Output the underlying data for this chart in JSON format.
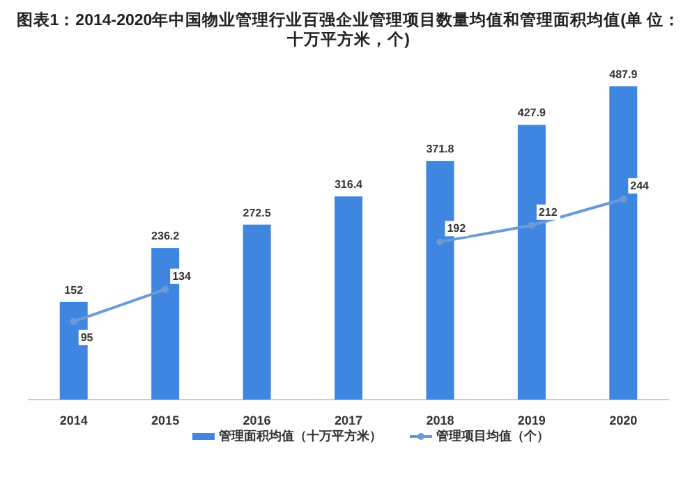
{
  "chart_data": {
    "type": "bar",
    "title": "图表1：2014-2020年中国物业管理行业百强企业管理项目数量均值和管理面积均值(单 位：十万平方米，个)",
    "categories": [
      "2014",
      "2015",
      "2016",
      "2017",
      "2018",
      "2019",
      "2020"
    ],
    "series": [
      {
        "name": "管理面积均值（十万平方米）",
        "color": "#3f86e0",
        "values": [
          152,
          236.2,
          272.5,
          316.4,
          371.8,
          427.9,
          487.9
        ]
      },
      {
        "name": "管理项目均值（个）",
        "type": "line",
        "axis": "y2",
        "color": "#6a9bd8",
        "marker": "circle",
        "values": [
          95,
          134,
          null,
          null,
          192,
          212,
          244
        ]
      }
    ],
    "data_labels": true,
    "legend": "bottom"
  }
}
